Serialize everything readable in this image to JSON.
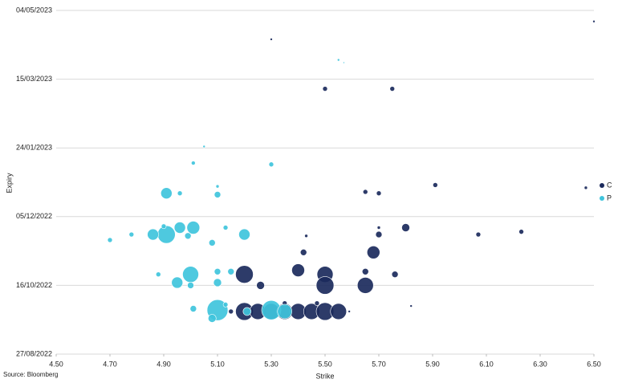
{
  "chart_data": {
    "type": "bubble",
    "x_label": "Strike",
    "y_label": "Expiry",
    "source": "Source: Bloomberg",
    "xlim": [
      4.5,
      6.5
    ],
    "xticks": [
      {
        "value": 4.5,
        "label": "4.50"
      },
      {
        "value": 4.7,
        "label": "4.70"
      },
      {
        "value": 4.9,
        "label": "4.90"
      },
      {
        "value": 5.1,
        "label": "5.10"
      },
      {
        "value": 5.3,
        "label": "5.30"
      },
      {
        "value": 5.5,
        "label": "5.50"
      },
      {
        "value": 5.7,
        "label": "5.70"
      },
      {
        "value": 5.9,
        "label": "5.90"
      },
      {
        "value": 6.1,
        "label": "6.10"
      },
      {
        "value": 6.3,
        "label": "6.30"
      },
      {
        "value": 6.5,
        "label": "6.50"
      }
    ],
    "ylim": [
      "2022-08-27",
      "2023-05-04"
    ],
    "yticks": [
      {
        "value": "2022-08-27",
        "label": "27/08/2022"
      },
      {
        "value": "2022-10-16",
        "label": "16/10/2022"
      },
      {
        "value": "2022-12-05",
        "label": "05/12/2022"
      },
      {
        "value": "2023-01-24",
        "label": "24/01/2023"
      },
      {
        "value": "2023-03-15",
        "label": "15/03/2023"
      },
      {
        "value": "2023-05-04",
        "label": "04/05/2023"
      }
    ],
    "grid": true,
    "legend": "right",
    "series": [
      {
        "name": "C",
        "color": "#1b2a5c",
        "x": [
          5.2,
          5.25,
          5.3,
          5.35,
          5.4,
          5.45,
          5.5,
          5.55,
          5.15,
          5.59,
          5.35,
          5.47,
          5.2,
          5.4,
          5.5,
          5.65,
          5.76,
          5.5,
          5.65,
          5.26,
          5.68,
          5.42,
          5.7,
          5.8,
          6.07,
          6.23,
          5.43,
          5.7,
          5.65,
          5.7,
          5.91,
          6.47,
          5.5,
          5.75,
          5.3,
          6.5,
          5.82
        ],
        "values": [
          "2022-09-27",
          "2022-09-27",
          "2022-09-27",
          "2022-09-27",
          "2022-09-27",
          "2022-09-27",
          "2022-09-27",
          "2022-09-27",
          "2022-09-27",
          "2022-09-27",
          "2022-10-03",
          "2022-10-03",
          "2022-10-24",
          "2022-10-27",
          "2022-10-24",
          "2022-10-26",
          "2022-10-24",
          "2022-10-16",
          "2022-10-16",
          "2022-10-16",
          "2022-11-09",
          "2022-11-09",
          "2022-11-22",
          "2022-11-27",
          "2022-11-22",
          "2022-11-24",
          "2022-11-21",
          "2022-11-27",
          "2022-12-23",
          "2022-12-22",
          "2022-12-28",
          "2022-12-26",
          "2023-03-08",
          "2023-03-08",
          "2023-04-13",
          "2023-04-26",
          "2022-10-01"
        ],
        "sizes": [
          11,
          10,
          10,
          10,
          10,
          10,
          11,
          10,
          3,
          1.5,
          3,
          3,
          11,
          8,
          10,
          4,
          4,
          11,
          10,
          5,
          8,
          4,
          4,
          5,
          3,
          3,
          2,
          2,
          3,
          3,
          3,
          2,
          3,
          3,
          1.5,
          1.5,
          1.5
        ]
      },
      {
        "name": "P",
        "color": "#3fc4dc",
        "x": [
          5.1,
          5.3,
          5.35,
          5.08,
          5.01,
          5.21,
          5.13,
          5.0,
          4.95,
          5.1,
          5.1,
          4.88,
          5.15,
          5.0,
          4.91,
          4.86,
          4.96,
          5.01,
          5.2,
          5.13,
          4.7,
          5.08,
          4.78,
          4.9,
          4.99,
          4.91,
          5.1,
          4.96,
          5.1,
          5.01,
          5.3,
          5.05,
          5.55,
          5.57
        ],
        "values": [
          "2022-09-28",
          "2022-09-28",
          "2022-09-27",
          "2022-09-22",
          "2022-09-29",
          "2022-09-27",
          "2022-10-02",
          "2022-10-24",
          "2022-10-18",
          "2022-10-26",
          "2022-10-18",
          "2022-10-24",
          "2022-10-26",
          "2022-10-16",
          "2022-11-22",
          "2022-11-22",
          "2022-11-27",
          "2022-11-27",
          "2022-11-22",
          "2022-11-27",
          "2022-11-18",
          "2022-11-16",
          "2022-11-22",
          "2022-11-28",
          "2022-11-21",
          "2022-12-22",
          "2022-12-21",
          "2022-12-22",
          "2022-12-27",
          "2023-01-13",
          "2023-01-12",
          "2023-01-25",
          "2023-03-29",
          "2023-03-27"
        ],
        "sizes": [
          13,
          12,
          9,
          5,
          4,
          5,
          3,
          10,
          7,
          4,
          5,
          3,
          4,
          4,
          11,
          7,
          7,
          8,
          7,
          3,
          3,
          4,
          3,
          3,
          4,
          7,
          4,
          3,
          2,
          2.5,
          3,
          1.5,
          1.5,
          1
        ]
      }
    ]
  }
}
